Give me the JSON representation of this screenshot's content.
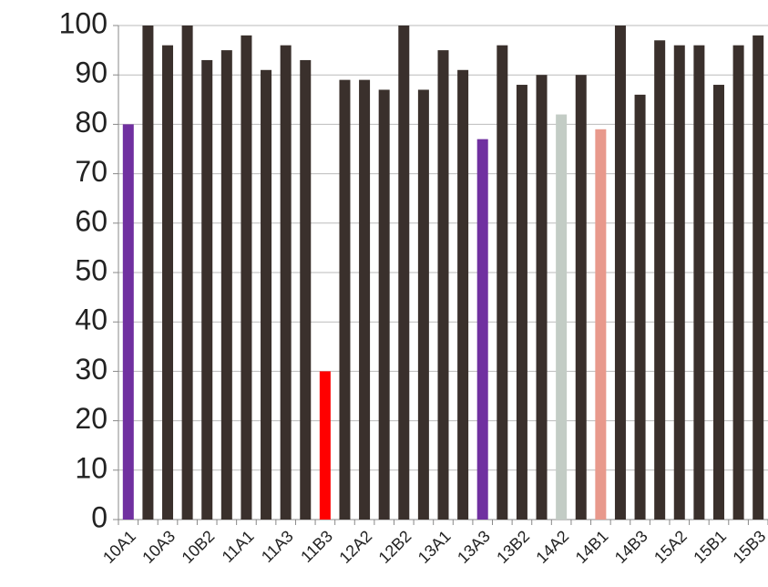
{
  "chart_data": {
    "type": "bar",
    "categories": [
      "10A1",
      null,
      "10A3",
      null,
      "10B2",
      null,
      "11A1",
      null,
      "11A3",
      null,
      "11B3",
      null,
      "12A2",
      null,
      "12B2",
      null,
      "13A1",
      null,
      "13A3",
      null,
      "13B2",
      null,
      "14A2",
      null,
      "14B1",
      null,
      "14B3",
      null,
      "15A2",
      null,
      "15B1",
      null,
      "15B3"
    ],
    "values": [
      80,
      100,
      96,
      100,
      93,
      95,
      98,
      91,
      96,
      93,
      30,
      89,
      89,
      87,
      100,
      87,
      95,
      91,
      77,
      96,
      88,
      90,
      82,
      90,
      79,
      100,
      86,
      97,
      96,
      96,
      88,
      96,
      98
    ],
    "colors": [
      "#7030a0",
      "#3a302c",
      "#3a302c",
      "#3a302c",
      "#3a302c",
      "#3a302c",
      "#3a302c",
      "#3a302c",
      "#3a302c",
      "#3a302c",
      "#ff0000",
      "#3a302c",
      "#3a302c",
      "#3a302c",
      "#3a302c",
      "#3a302c",
      "#3a302c",
      "#3a302c",
      "#7030a0",
      "#3a302c",
      "#3a302c",
      "#3a302c",
      "#c3ccc5",
      "#3a302c",
      "#e8998c",
      "#3a302c",
      "#3a302c",
      "#3a302c",
      "#3a302c",
      "#3a302c",
      "#3a302c",
      "#3a302c",
      "#3a302c"
    ],
    "ylim": [
      0,
      100
    ],
    "yticks": [
      0,
      10,
      20,
      30,
      40,
      50,
      60,
      70,
      80,
      90,
      100
    ],
    "grid": true
  }
}
